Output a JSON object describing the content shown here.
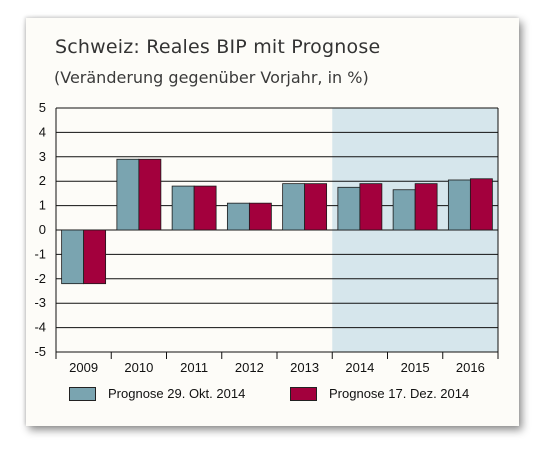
{
  "chart_data": {
    "type": "bar",
    "title": "Schweiz: Reales BIP mit Prognose",
    "subtitle": "(Veränderung gegenüber Vorjahr, in %)",
    "categories": [
      "2009",
      "2010",
      "2011",
      "2012",
      "2013",
      "2014",
      "2015",
      "2016"
    ],
    "series": [
      {
        "name": "Prognose 29. Okt. 2014",
        "color": "#7aa4b0",
        "values": [
          -2.2,
          2.9,
          1.8,
          1.1,
          1.9,
          1.75,
          1.65,
          2.05
        ]
      },
      {
        "name": "Prognose 17. Dez. 2014",
        "color": "#a3003d",
        "values": [
          -2.2,
          2.9,
          1.8,
          1.1,
          1.9,
          1.9,
          1.9,
          2.1
        ]
      }
    ],
    "ylim": [
      -5,
      5
    ],
    "yticks": [
      "5",
      "4",
      "3",
      "2",
      "1",
      "0",
      "-1",
      "-2",
      "-3",
      "-4",
      "-5"
    ],
    "forecast_shading": {
      "from_category": "2014",
      "color": "#d6e6ec"
    },
    "grid": true,
    "legend_position": "bottom"
  }
}
